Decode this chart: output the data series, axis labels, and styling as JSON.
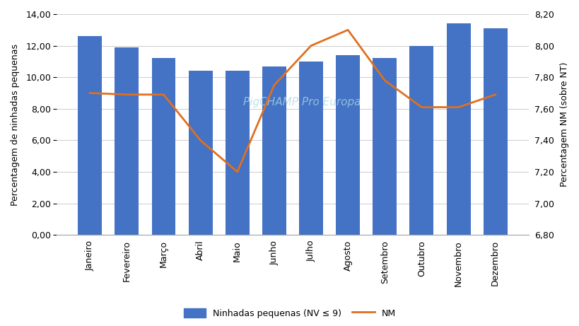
{
  "months": [
    "Janeiro",
    "Fevereiro",
    "Março",
    "Abril",
    "Maio",
    "Junho",
    "Julho",
    "Agosto",
    "Setembro",
    "Outubro",
    "Novembro",
    "Dezembro"
  ],
  "bar_values": [
    12.6,
    11.9,
    11.2,
    10.4,
    10.4,
    10.7,
    11.0,
    11.4,
    11.2,
    12.0,
    13.4,
    13.1
  ],
  "line_values": [
    7.7,
    7.69,
    7.69,
    7.4,
    7.2,
    7.75,
    8.0,
    8.1,
    7.78,
    7.61,
    7.61,
    7.69
  ],
  "bar_color": "#4472C4",
  "line_color": "#E07020",
  "left_ylim": [
    0.0,
    14.0
  ],
  "right_ylim": [
    6.8,
    8.2
  ],
  "left_yticks": [
    0.0,
    2.0,
    4.0,
    6.0,
    8.0,
    10.0,
    12.0,
    14.0
  ],
  "right_yticks": [
    6.8,
    7.0,
    7.2,
    7.4,
    7.6,
    7.8,
    8.0,
    8.2
  ],
  "left_ylabel": "Percentagem de ninhadas pequenas",
  "right_ylabel": "Percentagem NM (sobre NT)",
  "legend_bar": "Ninhadas pequenas (NV ≤ 9)",
  "legend_line": "NM",
  "watermark": "PigCHAMP Pro Europa",
  "background_color": "#FFFFFF",
  "grid_color": "#CCCCCC",
  "line_width": 2.0,
  "bar_width": 0.65
}
